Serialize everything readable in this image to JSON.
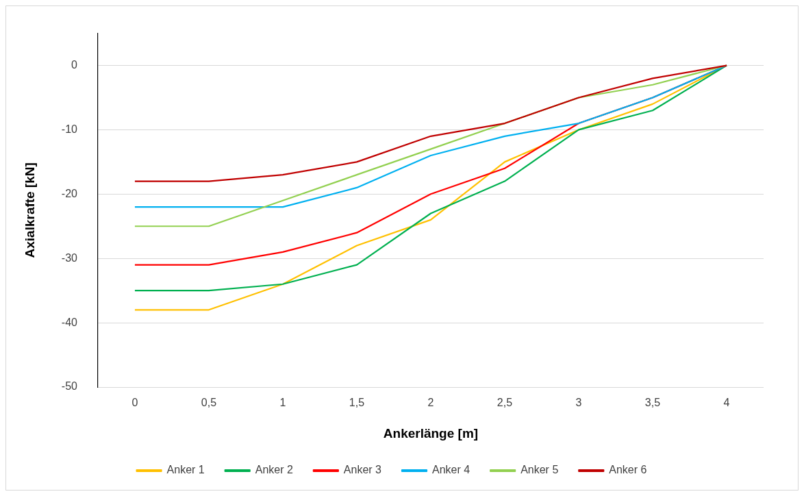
{
  "chart_data": {
    "type": "line",
    "xlabel": "Ankerlänge [m]",
    "ylabel": "Axialkrafte [kN]",
    "categories": [
      "0",
      "0,5",
      "1",
      "1,5",
      "2",
      "2,5",
      "3",
      "3,5",
      "4"
    ],
    "ylim": [
      -50,
      5
    ],
    "yticks": [
      -50,
      -40,
      -30,
      -20,
      -10,
      0
    ],
    "grid": "y",
    "legend": "bottom",
    "marker": "none",
    "line_style": "solid",
    "series": [
      {
        "name": "Anker 1",
        "color": "#ffc000",
        "values": [
          -38,
          -38,
          -34,
          -28,
          -24,
          -15,
          -10,
          -6,
          0
        ]
      },
      {
        "name": "Anker 2",
        "color": "#00b050",
        "values": [
          -35,
          -35,
          -34,
          -31,
          -23,
          -18,
          -10,
          -7,
          0
        ]
      },
      {
        "name": "Anker 3",
        "color": "#ff0000",
        "values": [
          -31,
          -31,
          -29,
          -26,
          -20,
          -16,
          -9,
          -5,
          0
        ]
      },
      {
        "name": "Anker 4",
        "color": "#00b0f0",
        "values": [
          -22,
          -22,
          -22,
          -19,
          -14,
          -11,
          -9,
          -5,
          0
        ]
      },
      {
        "name": "Anker 5",
        "color": "#92d050",
        "values": [
          -25,
          -25,
          -21,
          -17,
          -13,
          -9,
          -5,
          -3,
          0
        ]
      },
      {
        "name": "Anker 6",
        "color": "#c00000",
        "values": [
          -18,
          -18,
          -17,
          -15,
          -11,
          -9,
          -5,
          -2,
          0
        ]
      }
    ]
  }
}
